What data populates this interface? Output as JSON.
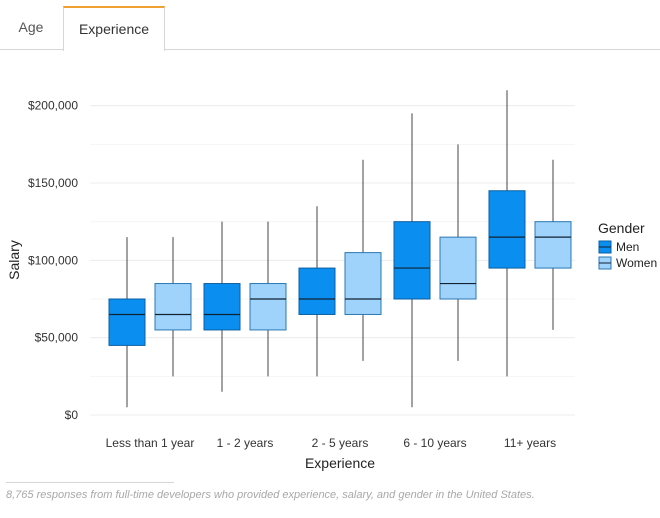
{
  "tabs": [
    {
      "label": "Age",
      "active": false
    },
    {
      "label": "Experience",
      "active": true
    }
  ],
  "chart_data": {
    "type": "box",
    "xlabel": "Experience",
    "ylabel": "Salary",
    "ylim": [
      0,
      215000
    ],
    "yticks": [
      0,
      50000,
      100000,
      150000,
      200000
    ],
    "ytick_labels": [
      "$0",
      "$50,000",
      "$100,000",
      "$150,000",
      "$200,000"
    ],
    "categories": [
      "Less than 1 year",
      "1 - 2 years",
      "2 - 5 years",
      "6 - 10 years",
      "11+ years"
    ],
    "legend": {
      "title": "Gender",
      "position": "right"
    },
    "series": [
      {
        "name": "Men",
        "color": "#0a8ff0",
        "boxes": [
          {
            "min": 5000,
            "q1": 45000,
            "median": 65000,
            "q3": 75000,
            "max": 115000
          },
          {
            "min": 15000,
            "q1": 55000,
            "median": 65000,
            "q3": 85000,
            "max": 125000
          },
          {
            "min": 25000,
            "q1": 65000,
            "median": 75000,
            "q3": 95000,
            "max": 135000
          },
          {
            "min": 5000,
            "q1": 75000,
            "median": 95000,
            "q3": 125000,
            "max": 195000
          },
          {
            "min": 25000,
            "q1": 95000,
            "median": 115000,
            "q3": 145000,
            "max": 210000
          }
        ]
      },
      {
        "name": "Women",
        "color": "#9fd3fb",
        "boxes": [
          {
            "min": 25000,
            "q1": 55000,
            "median": 65000,
            "q3": 85000,
            "max": 115000
          },
          {
            "min": 25000,
            "q1": 55000,
            "median": 75000,
            "q3": 85000,
            "max": 125000
          },
          {
            "min": 35000,
            "q1": 65000,
            "median": 75000,
            "q3": 105000,
            "max": 165000
          },
          {
            "min": 35000,
            "q1": 75000,
            "median": 85000,
            "q3": 115000,
            "max": 175000
          },
          {
            "min": 55000,
            "q1": 95000,
            "median": 115000,
            "q3": 125000,
            "max": 165000
          }
        ]
      }
    ],
    "grid": true
  },
  "footnote": "8,765 responses from full-time developers who provided experience, salary, and gender in the United States."
}
